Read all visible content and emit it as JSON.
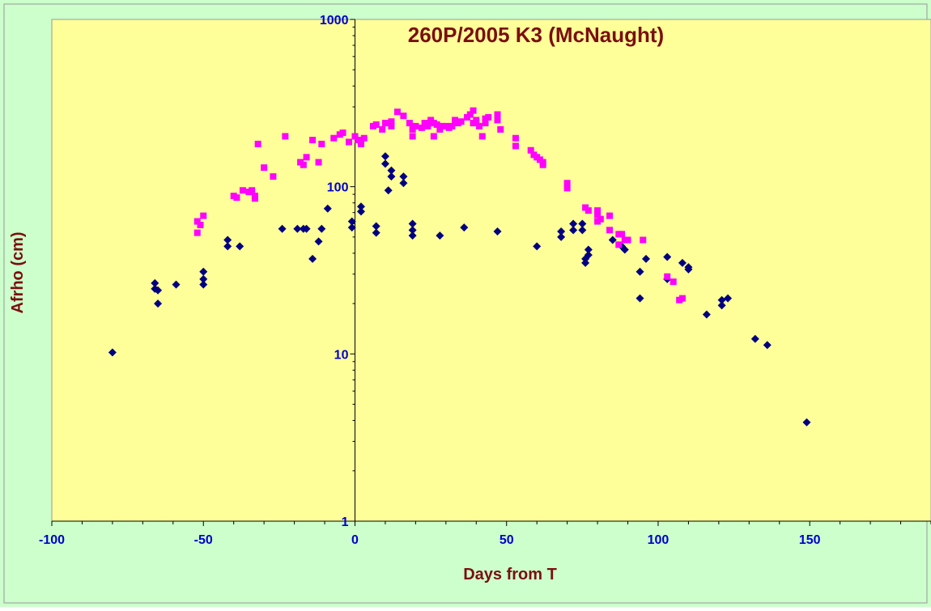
{
  "chart_data": {
    "type": "scatter",
    "title": "260P/2005 K3 (McNaught)",
    "xlabel": "Days from T",
    "ylabel": "Afrho (cm)",
    "xlim": [
      -100,
      190
    ],
    "ylim": [
      1,
      1000
    ],
    "yscale": "log",
    "xticks": [
      -100,
      -50,
      0,
      50,
      100,
      150
    ],
    "xtick_labels": [
      "-100",
      "-50",
      "0",
      "50",
      "100",
      "150"
    ],
    "yticks": [
      1,
      10,
      100,
      1000
    ],
    "ytick_labels": [
      "1",
      "10",
      "100",
      "1000"
    ],
    "grid": false,
    "legend": "none",
    "colors": {
      "background": "#ccffcc",
      "plot_area": "#ffff99",
      "frame": "#999999",
      "axis": "#000000",
      "tick_labels": "#0000cc",
      "titles": "#7a0f0f"
    },
    "series": [
      {
        "marker": "diamond",
        "color": "#000080",
        "points": [
          [
            -80,
            10.2
          ],
          [
            -66,
            26.5
          ],
          [
            -66,
            24.5
          ],
          [
            -65,
            24
          ],
          [
            -65,
            20
          ],
          [
            -59,
            26
          ],
          [
            -50,
            31
          ],
          [
            -50,
            28
          ],
          [
            -50,
            26
          ],
          [
            -42,
            48
          ],
          [
            -42,
            44
          ],
          [
            -38,
            44
          ],
          [
            -24,
            56
          ],
          [
            -19,
            56
          ],
          [
            -17,
            56
          ],
          [
            -16,
            56
          ],
          [
            -14,
            37
          ],
          [
            -12,
            47
          ],
          [
            -11,
            56
          ],
          [
            -9,
            74
          ],
          [
            -1,
            62
          ],
          [
            -1,
            57
          ],
          [
            2,
            76
          ],
          [
            2,
            71
          ],
          [
            7,
            58
          ],
          [
            7,
            53
          ],
          [
            10,
            152
          ],
          [
            10,
            137
          ],
          [
            11,
            95
          ],
          [
            12,
            125
          ],
          [
            12,
            115
          ],
          [
            16,
            115
          ],
          [
            16,
            105
          ],
          [
            19,
            60
          ],
          [
            19,
            55
          ],
          [
            19,
            51
          ],
          [
            28,
            51
          ],
          [
            36,
            57
          ],
          [
            47,
            54
          ],
          [
            60,
            44
          ],
          [
            68,
            54
          ],
          [
            68,
            50
          ],
          [
            72,
            60
          ],
          [
            72,
            55
          ],
          [
            75,
            60
          ],
          [
            75,
            55
          ],
          [
            76,
            37
          ],
          [
            76,
            35
          ],
          [
            77,
            42
          ],
          [
            77,
            39
          ],
          [
            85,
            48
          ],
          [
            88,
            44
          ],
          [
            89,
            42
          ],
          [
            94,
            31
          ],
          [
            94,
            21.5
          ],
          [
            96,
            37
          ],
          [
            103,
            38
          ],
          [
            103,
            28
          ],
          [
            108,
            35
          ],
          [
            110,
            33
          ],
          [
            110,
            32
          ],
          [
            116,
            17.2
          ],
          [
            121,
            21
          ],
          [
            121,
            19.5
          ],
          [
            123,
            21.5
          ],
          [
            132,
            12.3
          ],
          [
            136,
            11.3
          ],
          [
            149,
            3.9
          ]
        ]
      },
      {
        "marker": "square",
        "color": "#ff00ff",
        "points": [
          [
            -52,
            62
          ],
          [
            -52,
            53
          ],
          [
            -51,
            59
          ],
          [
            -50,
            67
          ],
          [
            -40,
            88
          ],
          [
            -39,
            86
          ],
          [
            -37,
            95
          ],
          [
            -35,
            93
          ],
          [
            -34,
            95
          ],
          [
            -33,
            88
          ],
          [
            -33,
            85
          ],
          [
            -32,
            180
          ],
          [
            -30,
            130
          ],
          [
            -27,
            115
          ],
          [
            -23,
            200
          ],
          [
            -18,
            140
          ],
          [
            -17,
            135
          ],
          [
            -16,
            150
          ],
          [
            -14,
            190
          ],
          [
            -12,
            140
          ],
          [
            -11,
            180
          ],
          [
            -7,
            195
          ],
          [
            -5,
            205
          ],
          [
            -4,
            210
          ],
          [
            -2,
            185
          ],
          [
            0,
            200
          ],
          [
            1,
            190
          ],
          [
            2,
            180
          ],
          [
            3,
            195
          ],
          [
            6,
            230
          ],
          [
            7,
            235
          ],
          [
            9,
            220
          ],
          [
            10,
            240
          ],
          [
            12,
            230
          ],
          [
            12,
            245
          ],
          [
            14,
            280
          ],
          [
            16,
            265
          ],
          [
            18,
            240
          ],
          [
            19,
            220
          ],
          [
            19,
            200
          ],
          [
            20,
            230
          ],
          [
            22,
            225
          ],
          [
            23,
            240
          ],
          [
            24,
            230
          ],
          [
            25,
            250
          ],
          [
            26,
            200
          ],
          [
            26,
            240
          ],
          [
            27,
            235
          ],
          [
            28,
            220
          ],
          [
            29,
            230
          ],
          [
            30,
            230
          ],
          [
            31,
            225
          ],
          [
            32,
            230
          ],
          [
            33,
            250
          ],
          [
            34,
            240
          ],
          [
            35,
            245
          ],
          [
            37,
            260
          ],
          [
            38,
            270
          ],
          [
            39,
            240
          ],
          [
            39,
            285
          ],
          [
            40,
            250
          ],
          [
            41,
            230
          ],
          [
            42,
            200
          ],
          [
            43,
            240
          ],
          [
            43,
            255
          ],
          [
            44,
            260
          ],
          [
            47,
            270
          ],
          [
            47,
            250
          ],
          [
            48,
            220
          ],
          [
            53,
            195
          ],
          [
            53,
            175
          ],
          [
            58,
            165
          ],
          [
            59,
            155
          ],
          [
            60,
            150
          ],
          [
            61,
            145
          ],
          [
            62,
            140
          ],
          [
            62,
            135
          ],
          [
            70,
            105
          ],
          [
            70,
            98
          ],
          [
            76,
            75
          ],
          [
            77,
            72
          ],
          [
            80,
            72
          ],
          [
            80,
            68
          ],
          [
            80,
            62
          ],
          [
            81,
            64
          ],
          [
            84,
            67
          ],
          [
            84,
            55
          ],
          [
            87,
            52
          ],
          [
            87,
            45
          ],
          [
            88,
            52
          ],
          [
            89,
            48
          ],
          [
            90,
            48
          ],
          [
            95,
            48
          ],
          [
            103,
            29
          ],
          [
            105,
            27
          ],
          [
            107,
            21
          ],
          [
            108,
            21.5
          ]
        ]
      }
    ]
  }
}
